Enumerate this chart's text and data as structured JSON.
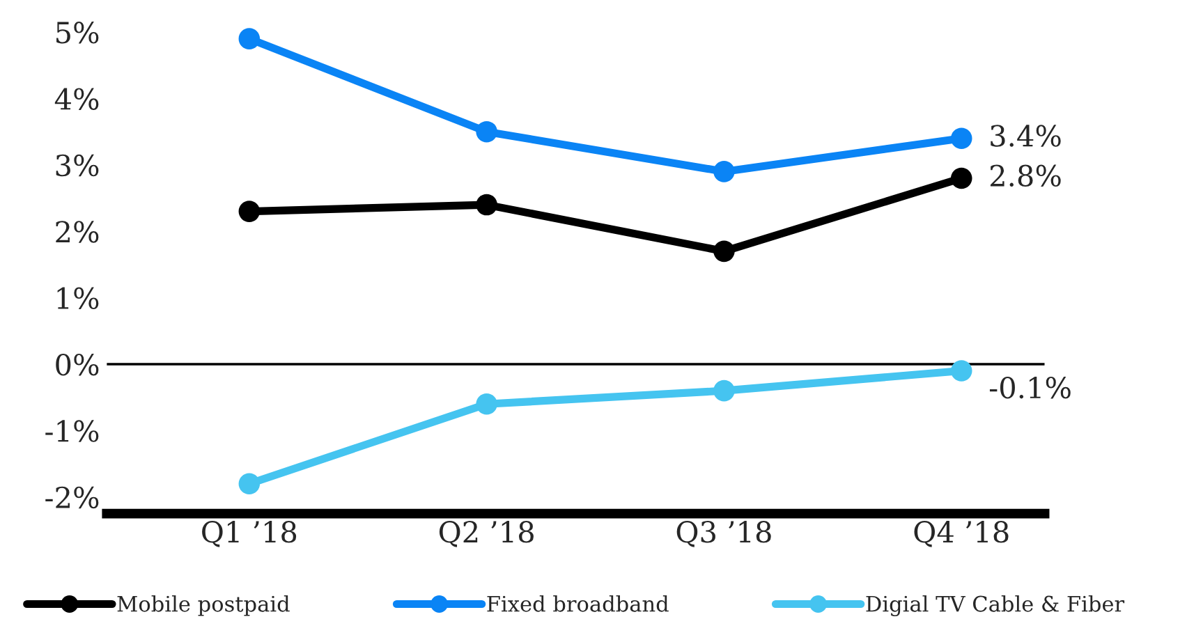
{
  "chart_data": {
    "type": "line",
    "categories": [
      "Q1 ’18",
      "Q2 ’18",
      "Q3 ’18",
      "Q4 ’18"
    ],
    "series": [
      {
        "name": "Mobile postpaid",
        "color": "#000000",
        "values": [
          2.3,
          2.4,
          1.7,
          2.8
        ],
        "value_labels": [
          null,
          null,
          null,
          "2.8%"
        ]
      },
      {
        "name": "Fixed broadband",
        "color": "#0a84f5",
        "values": [
          4.9,
          3.5,
          2.9,
          3.4
        ],
        "value_labels": [
          null,
          null,
          null,
          "3.4%"
        ]
      },
      {
        "name": "Digial TV Cable & Fiber",
        "color": "#45c4f0",
        "values": [
          -1.8,
          -0.6,
          -0.4,
          -0.1
        ],
        "value_labels": [
          null,
          null,
          null,
          "-0.1%"
        ]
      }
    ],
    "ylim": [
      -2.25,
      5
    ],
    "yticks": [
      {
        "value": -2,
        "label": "-2%"
      },
      {
        "value": -1,
        "label": "-1%"
      },
      {
        "value": 0,
        "label": "0%"
      },
      {
        "value": 1,
        "label": "1%"
      },
      {
        "value": 2,
        "label": "2%"
      },
      {
        "value": 3,
        "label": "3%"
      },
      {
        "value": 4,
        "label": "4%"
      },
      {
        "value": 5,
        "label": "5%"
      }
    ],
    "ref_lines": [
      {
        "axis": "y",
        "value": 0,
        "color": "#000000"
      }
    ],
    "marker": "circle",
    "line_style": "solid",
    "grid": false,
    "legend": "bottom"
  }
}
